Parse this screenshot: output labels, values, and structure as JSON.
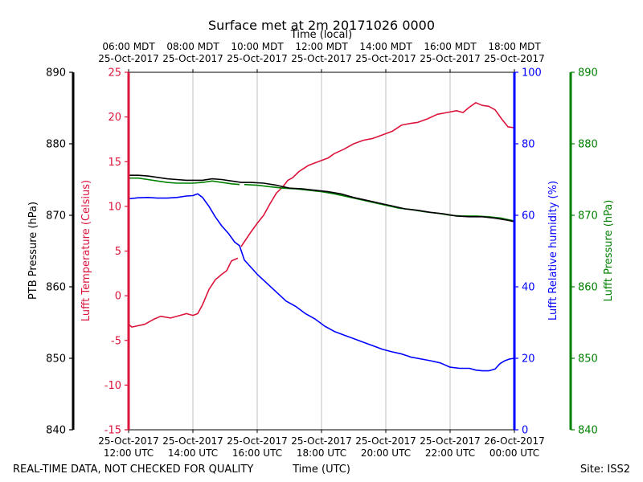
{
  "chart_data": {
    "type": "line",
    "title": "Surface met at 2m 20171026 0000",
    "top_axis_label": "Time (local)",
    "xlabel": "Time (UTC)",
    "footer_left": "REAL-TIME DATA, NOT CHECKED FOR QUALITY",
    "footer_right": "Site: ISS2",
    "x_range_hours_utc": [
      12,
      24
    ],
    "x_ticks_bottom": [
      {
        "hour": 12,
        "line1": "25-Oct-2017",
        "line2": "12:00 UTC"
      },
      {
        "hour": 14,
        "line1": "25-Oct-2017",
        "line2": "14:00 UTC"
      },
      {
        "hour": 16,
        "line1": "25-Oct-2017",
        "line2": "16:00 UTC"
      },
      {
        "hour": 18,
        "line1": "25-Oct-2017",
        "line2": "18:00 UTC"
      },
      {
        "hour": 20,
        "line1": "25-Oct-2017",
        "line2": "20:00 UTC"
      },
      {
        "hour": 22,
        "line1": "25-Oct-2017",
        "line2": "22:00 UTC"
      },
      {
        "hour": 24,
        "line1": "26-Oct-2017",
        "line2": "00:00 UTC"
      }
    ],
    "x_ticks_top": [
      {
        "hour": 12,
        "line1": "06:00 MDT",
        "line2": "25-Oct-2017"
      },
      {
        "hour": 14,
        "line1": "08:00 MDT",
        "line2": "25-Oct-2017"
      },
      {
        "hour": 16,
        "line1": "10:00 MDT",
        "line2": "25-Oct-2017"
      },
      {
        "hour": 18,
        "line1": "12:00 MDT",
        "line2": "25-Oct-2017"
      },
      {
        "hour": 20,
        "line1": "14:00 MDT",
        "line2": "25-Oct-2017"
      },
      {
        "hour": 22,
        "line1": "16:00 MDT",
        "line2": "25-Oct-2017"
      },
      {
        "hour": 24,
        "line1": "18:00 MDT",
        "line2": "25-Oct-2017"
      }
    ],
    "axes": {
      "ptb_pressure": {
        "label": "PTB Pressure (hPa)",
        "color": "#000000",
        "range": [
          840,
          890
        ],
        "ticks": [
          840,
          850,
          860,
          870,
          880,
          890
        ]
      },
      "temperature": {
        "label": "Lufft Temperature (Celsius)",
        "color": "#dc143c",
        "range": [
          -15,
          25
        ],
        "ticks": [
          -15,
          -10,
          -5,
          0,
          5,
          10,
          15,
          20,
          25
        ]
      },
      "humidity": {
        "label": "Lufft Relative humidity (%)",
        "color": "#0000ff",
        "range": [
          0,
          100
        ],
        "ticks": [
          0,
          20,
          40,
          60,
          80,
          100
        ]
      },
      "lufft_pressure": {
        "label": "Lufft Pressure (hPa)",
        "color": "#008000",
        "range": [
          840,
          890
        ],
        "ticks": [
          840,
          850,
          860,
          870,
          880,
          890
        ]
      }
    },
    "series": [
      {
        "name": "Lufft Temperature",
        "axis": "temperature",
        "color": "#dc143c",
        "gaps": [
          [
            15.4,
            15.5
          ],
          [
            16.9,
            17.0
          ]
        ],
        "points": [
          [
            12.0,
            -3.2
          ],
          [
            12.1,
            -3.5
          ],
          [
            12.5,
            -3.2
          ],
          [
            12.8,
            -2.6
          ],
          [
            13.0,
            -2.3
          ],
          [
            13.3,
            -2.5
          ],
          [
            13.6,
            -2.2
          ],
          [
            13.8,
            -2.0
          ],
          [
            14.0,
            -2.2
          ],
          [
            14.15,
            -2.0
          ],
          [
            14.3,
            -1.0
          ],
          [
            14.5,
            0.7
          ],
          [
            14.7,
            1.8
          ],
          [
            14.9,
            2.4
          ],
          [
            15.05,
            2.8
          ],
          [
            15.2,
            3.9
          ],
          [
            15.4,
            4.2
          ],
          [
            15.5,
            5.5
          ],
          [
            15.65,
            6.3
          ],
          [
            15.8,
            7.1
          ],
          [
            16.0,
            8.1
          ],
          [
            16.2,
            9.0
          ],
          [
            16.4,
            10.3
          ],
          [
            16.6,
            11.5
          ],
          [
            16.8,
            12.2
          ],
          [
            16.95,
            12.9
          ],
          [
            17.1,
            13.2
          ],
          [
            17.3,
            13.9
          ],
          [
            17.6,
            14.6
          ],
          [
            17.9,
            15.0
          ],
          [
            18.2,
            15.4
          ],
          [
            18.4,
            15.9
          ],
          [
            18.7,
            16.4
          ],
          [
            19.0,
            17.0
          ],
          [
            19.3,
            17.4
          ],
          [
            19.6,
            17.6
          ],
          [
            19.9,
            18.0
          ],
          [
            20.2,
            18.4
          ],
          [
            20.5,
            19.1
          ],
          [
            20.8,
            19.3
          ],
          [
            21.0,
            19.4
          ],
          [
            21.3,
            19.8
          ],
          [
            21.6,
            20.3
          ],
          [
            21.9,
            20.5
          ],
          [
            22.2,
            20.7
          ],
          [
            22.4,
            20.5
          ],
          [
            22.6,
            21.1
          ],
          [
            22.8,
            21.6
          ],
          [
            23.0,
            21.3
          ],
          [
            23.2,
            21.2
          ],
          [
            23.4,
            20.8
          ],
          [
            23.6,
            19.8
          ],
          [
            23.8,
            18.9
          ],
          [
            24.0,
            18.8
          ]
        ]
      },
      {
        "name": "Lufft Relative humidity",
        "axis": "humidity",
        "color": "#0000ff",
        "points": [
          [
            12.0,
            64.6
          ],
          [
            12.3,
            64.9
          ],
          [
            12.6,
            65.0
          ],
          [
            12.9,
            64.8
          ],
          [
            13.2,
            64.8
          ],
          [
            13.5,
            65.0
          ],
          [
            13.8,
            65.4
          ],
          [
            14.0,
            65.5
          ],
          [
            14.15,
            66.0
          ],
          [
            14.3,
            65.0
          ],
          [
            14.5,
            62.5
          ],
          [
            14.7,
            59.5
          ],
          [
            14.9,
            57.0
          ],
          [
            15.1,
            55.0
          ],
          [
            15.3,
            52.5
          ],
          [
            15.45,
            51.5
          ],
          [
            15.6,
            47.5
          ],
          [
            15.8,
            45.5
          ],
          [
            16.0,
            43.5
          ],
          [
            16.3,
            41.0
          ],
          [
            16.6,
            38.5
          ],
          [
            16.9,
            36.0
          ],
          [
            17.2,
            34.5
          ],
          [
            17.5,
            32.5
          ],
          [
            17.8,
            31.0
          ],
          [
            18.1,
            29.0
          ],
          [
            18.4,
            27.5
          ],
          [
            18.7,
            26.5
          ],
          [
            19.0,
            25.5
          ],
          [
            19.3,
            24.5
          ],
          [
            19.6,
            23.5
          ],
          [
            19.9,
            22.5
          ],
          [
            20.2,
            21.8
          ],
          [
            20.5,
            21.2
          ],
          [
            20.8,
            20.3
          ],
          [
            21.1,
            19.8
          ],
          [
            21.4,
            19.3
          ],
          [
            21.7,
            18.7
          ],
          [
            22.0,
            17.5
          ],
          [
            22.3,
            17.2
          ],
          [
            22.6,
            17.2
          ],
          [
            22.8,
            16.7
          ],
          [
            23.0,
            16.5
          ],
          [
            23.2,
            16.5
          ],
          [
            23.4,
            17.0
          ],
          [
            23.55,
            18.5
          ],
          [
            23.7,
            19.3
          ],
          [
            23.85,
            19.8
          ],
          [
            24.0,
            20.0
          ]
        ]
      },
      {
        "name": "Lufft Pressure",
        "axis": "lufft_pressure",
        "color": "#008000",
        "gaps": [
          [
            15.45,
            15.6
          ]
        ],
        "points": [
          [
            12.0,
            875.2
          ],
          [
            12.3,
            875.2
          ],
          [
            12.6,
            875.0
          ],
          [
            12.9,
            874.8
          ],
          [
            13.2,
            874.6
          ],
          [
            13.5,
            874.5
          ],
          [
            13.8,
            874.5
          ],
          [
            14.0,
            874.5
          ],
          [
            14.3,
            874.6
          ],
          [
            14.6,
            874.8
          ],
          [
            14.9,
            874.6
          ],
          [
            15.2,
            874.4
          ],
          [
            15.45,
            874.3
          ],
          [
            15.6,
            874.3
          ],
          [
            16.0,
            874.2
          ],
          [
            16.4,
            874.0
          ],
          [
            16.8,
            873.8
          ],
          [
            17.2,
            873.7
          ],
          [
            17.6,
            873.5
          ],
          [
            18.0,
            873.3
          ],
          [
            18.4,
            873.0
          ],
          [
            18.8,
            872.6
          ],
          [
            19.2,
            872.2
          ],
          [
            19.6,
            871.8
          ],
          [
            20.0,
            871.4
          ],
          [
            20.4,
            871.0
          ],
          [
            20.8,
            870.8
          ],
          [
            21.2,
            870.5
          ],
          [
            21.6,
            870.3
          ],
          [
            22.0,
            870.0
          ],
          [
            22.4,
            869.9
          ],
          [
            22.8,
            869.9
          ],
          [
            23.2,
            869.8
          ],
          [
            23.6,
            869.6
          ],
          [
            24.0,
            869.2
          ]
        ]
      },
      {
        "name": "PTB Pressure",
        "axis": "ptb_pressure",
        "color": "#000000",
        "points": [
          [
            12.0,
            875.6
          ],
          [
            12.3,
            875.6
          ],
          [
            12.6,
            875.5
          ],
          [
            12.9,
            875.3
          ],
          [
            13.2,
            875.1
          ],
          [
            13.5,
            875.0
          ],
          [
            13.8,
            874.9
          ],
          [
            14.0,
            874.9
          ],
          [
            14.3,
            874.9
          ],
          [
            14.6,
            875.1
          ],
          [
            14.9,
            875.0
          ],
          [
            15.2,
            874.8
          ],
          [
            15.5,
            874.6
          ],
          [
            15.8,
            874.6
          ],
          [
            16.2,
            874.5
          ],
          [
            16.6,
            874.2
          ],
          [
            17.0,
            873.8
          ],
          [
            17.4,
            873.7
          ],
          [
            17.8,
            873.5
          ],
          [
            18.2,
            873.3
          ],
          [
            18.6,
            873.0
          ],
          [
            19.0,
            872.5
          ],
          [
            19.4,
            872.1
          ],
          [
            19.8,
            871.7
          ],
          [
            20.2,
            871.3
          ],
          [
            20.6,
            870.9
          ],
          [
            21.0,
            870.7
          ],
          [
            21.4,
            870.4
          ],
          [
            21.8,
            870.2
          ],
          [
            22.2,
            869.9
          ],
          [
            22.6,
            869.8
          ],
          [
            23.0,
            869.8
          ],
          [
            23.4,
            869.6
          ],
          [
            23.8,
            869.3
          ],
          [
            24.0,
            869.1
          ]
        ]
      }
    ]
  }
}
